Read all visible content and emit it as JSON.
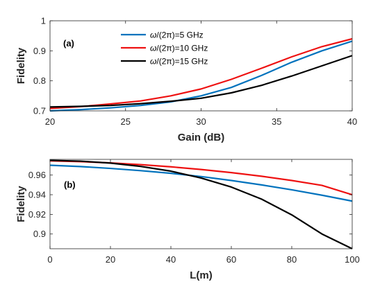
{
  "chart_data": [
    {
      "type": "line",
      "panel_label": "(a)",
      "xlabel": "Gain (dB)",
      "ylabel": "Fidelity",
      "xlim": [
        20,
        40
      ],
      "ylim": [
        0.7,
        1.0
      ],
      "xticks": [
        "20",
        "25",
        "30",
        "35",
        "40"
      ],
      "yticks": [
        "0.7",
        "0.8",
        "0.9",
        "1"
      ],
      "grid": false,
      "legend_position": "top-center",
      "x": [
        20,
        22,
        24,
        26,
        28,
        30,
        32,
        34,
        36,
        38,
        40
      ],
      "series": [
        {
          "name": "ω/(2π)=5 GHz",
          "color": "#0072BD",
          "values": [
            0.7,
            0.704,
            0.71,
            0.718,
            0.73,
            0.75,
            0.778,
            0.818,
            0.862,
            0.9,
            0.932
          ]
        },
        {
          "name": "ω/(2π)=10 GHz",
          "color": "#EE1111",
          "values": [
            0.708,
            0.714,
            0.723,
            0.733,
            0.75,
            0.773,
            0.805,
            0.842,
            0.88,
            0.914,
            0.94
          ]
        },
        {
          "name": "ω/(2π)=15 GHz",
          "color": "#000000",
          "values": [
            0.713,
            0.715,
            0.718,
            0.724,
            0.732,
            0.742,
            0.76,
            0.785,
            0.816,
            0.85,
            0.884
          ]
        }
      ]
    },
    {
      "type": "line",
      "panel_label": "(b)",
      "xlabel": "L(m)",
      "ylabel": "Fidelity",
      "xlim": [
        0,
        100
      ],
      "ylim": [
        0.885,
        0.976
      ],
      "xticks": [
        "0",
        "20",
        "40",
        "60",
        "80",
        "100"
      ],
      "yticks": [
        "0.9",
        "0.92",
        "0.94",
        "0.96"
      ],
      "grid": false,
      "x": [
        0,
        10,
        20,
        30,
        40,
        50,
        60,
        70,
        80,
        90,
        100
      ],
      "series": [
        {
          "color": "#0072BD",
          "values": [
            0.97,
            0.9687,
            0.9668,
            0.9645,
            0.9618,
            0.9585,
            0.9545,
            0.95,
            0.945,
            0.9395,
            0.9335
          ]
        },
        {
          "color": "#EE1111",
          "values": [
            0.9745,
            0.9737,
            0.9724,
            0.9706,
            0.9684,
            0.9657,
            0.9625,
            0.9588,
            0.9545,
            0.9495,
            0.94
          ]
        },
        {
          "color": "#000000",
          "values": [
            0.975,
            0.9742,
            0.9722,
            0.9688,
            0.964,
            0.957,
            0.9478,
            0.9355,
            0.9195,
            0.9,
            0.885
          ]
        }
      ]
    }
  ]
}
